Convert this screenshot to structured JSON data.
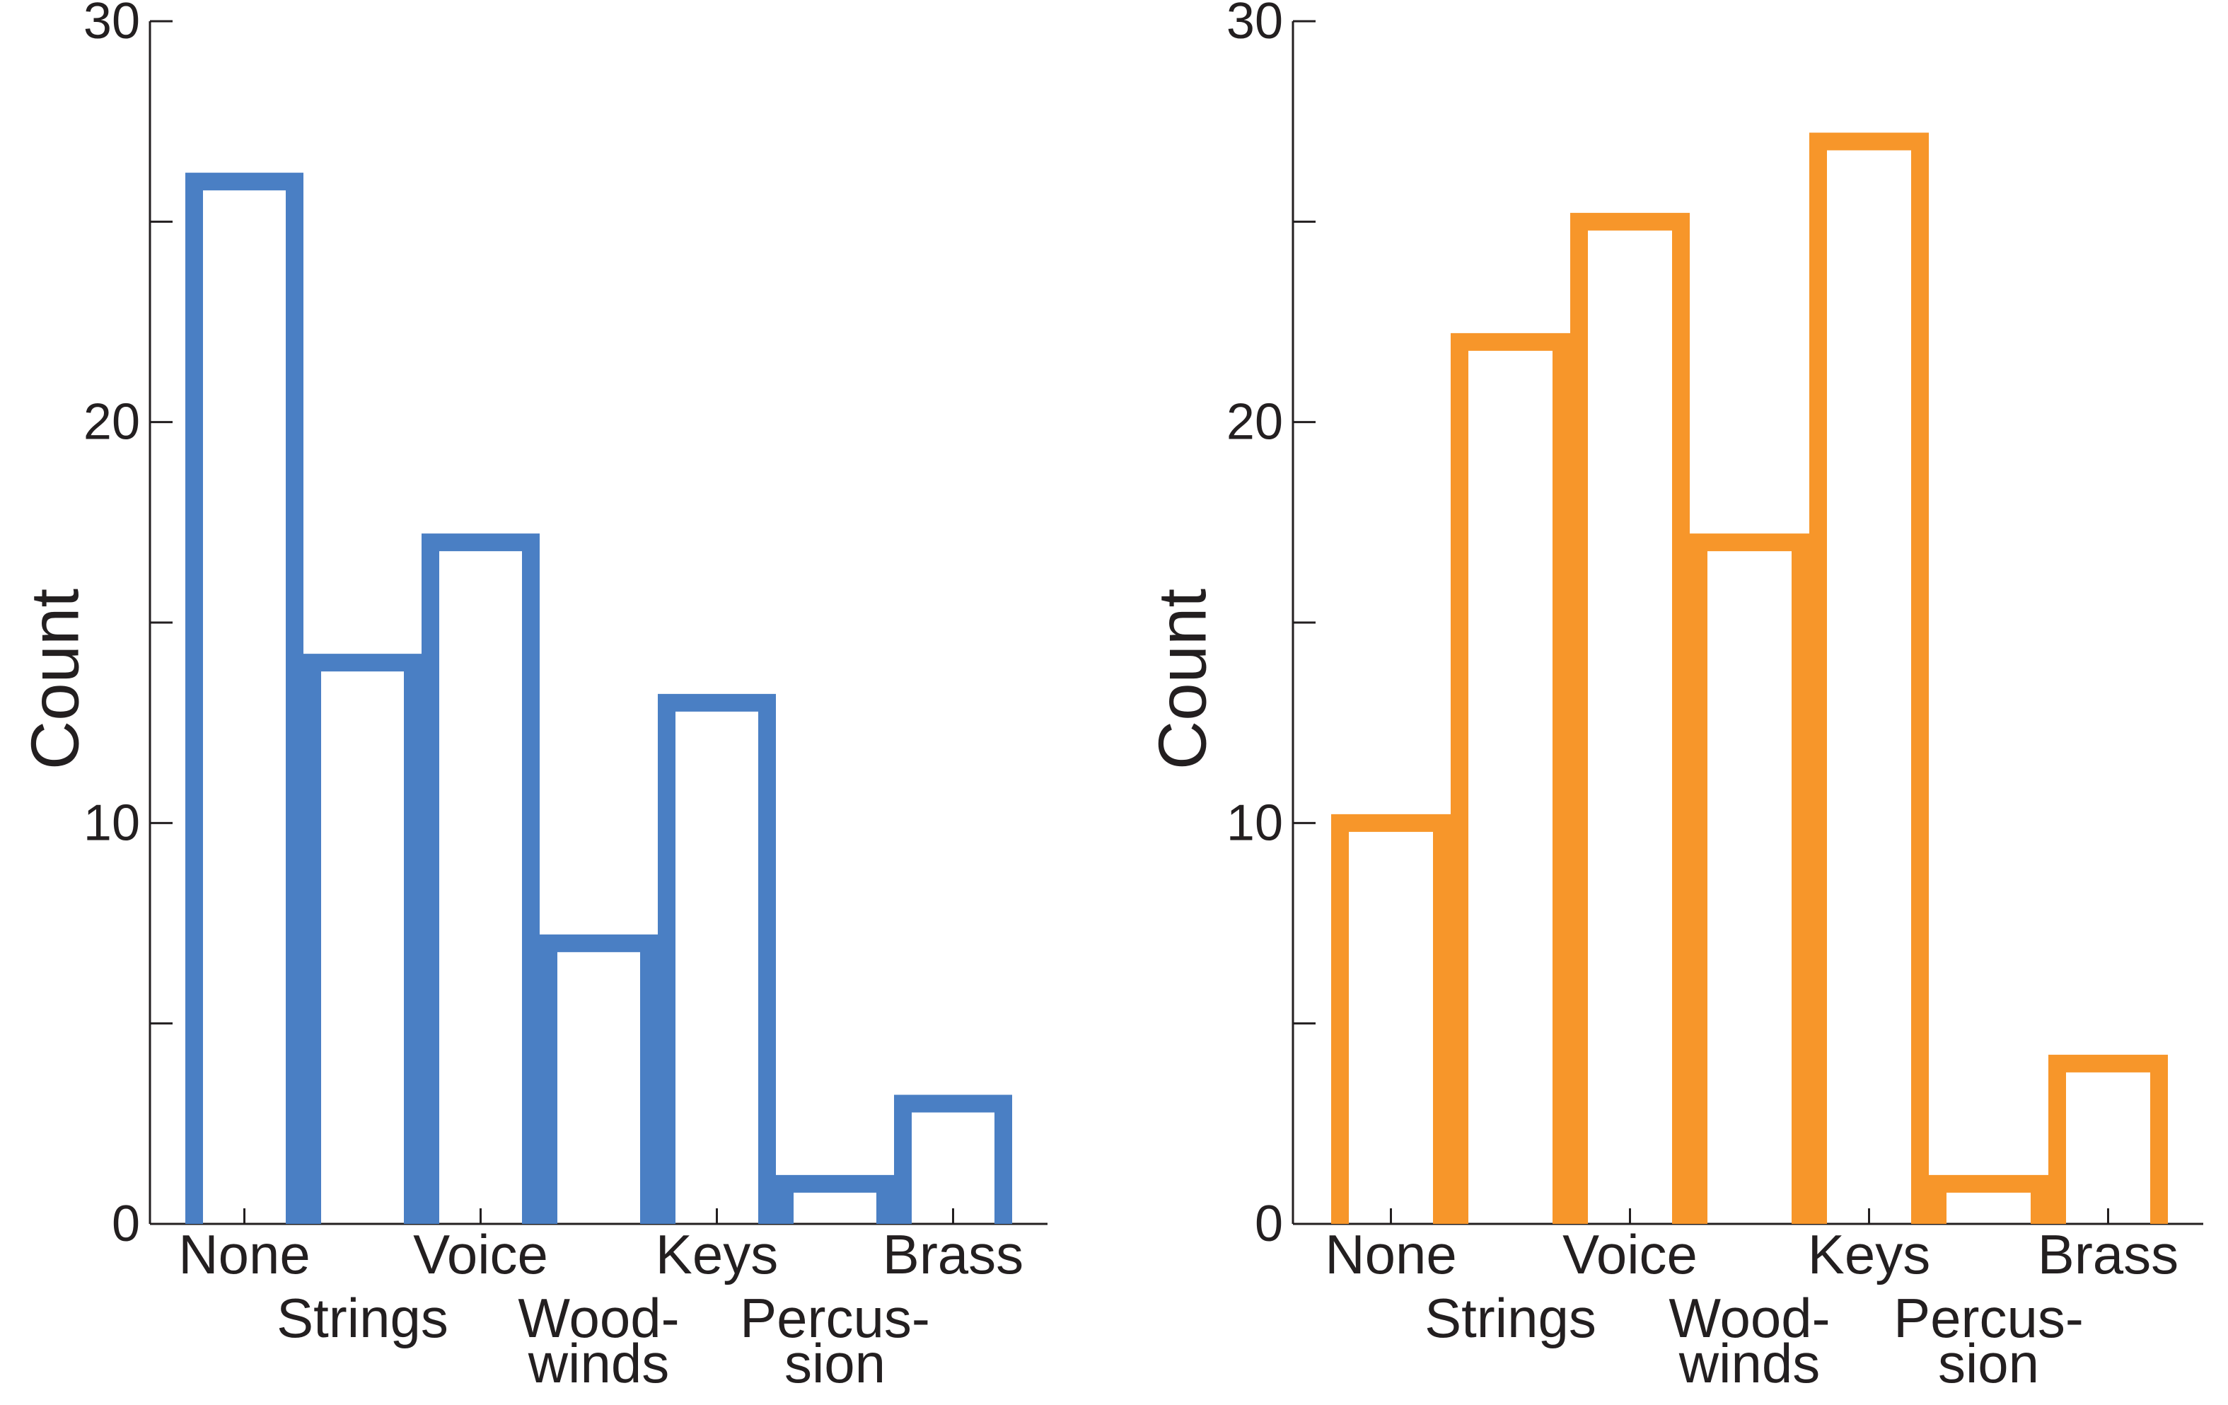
{
  "chart_data": [
    {
      "type": "bar",
      "style": "outline",
      "categories": [
        "None",
        "Strings",
        "Voice",
        "Wood-winds",
        "Keys",
        "Percus-sion",
        "Brass"
      ],
      "category_labels": [
        [
          "None"
        ],
        [
          "Strings"
        ],
        [
          "Voice"
        ],
        [
          "Wood-",
          "winds"
        ],
        [
          "Keys"
        ],
        [
          "Percus-",
          "sion"
        ],
        [
          "Brass"
        ]
      ],
      "values": [
        26,
        14,
        17,
        7,
        13,
        1,
        3
      ],
      "color": "#4a7fc4",
      "title": "",
      "xlabel": "",
      "ylabel": "Count",
      "ylim": [
        0,
        30
      ],
      "yticks": [
        0,
        10,
        20,
        30
      ],
      "yminor": [
        5,
        15,
        25
      ],
      "grid": false,
      "legend": "none"
    },
    {
      "type": "bar",
      "style": "outline",
      "categories": [
        "None",
        "Strings",
        "Voice",
        "Wood-winds",
        "Keys",
        "Percus-sion",
        "Brass"
      ],
      "category_labels": [
        [
          "None"
        ],
        [
          "Strings"
        ],
        [
          "Voice"
        ],
        [
          "Wood-",
          "winds"
        ],
        [
          "Keys"
        ],
        [
          "Percus-",
          "sion"
        ],
        [
          "Brass"
        ]
      ],
      "values": [
        10,
        22,
        25,
        17,
        27,
        1,
        4
      ],
      "color": "#f7962a",
      "title": "",
      "xlabel": "",
      "ylabel": "Count",
      "ylim": [
        0,
        30
      ],
      "yticks": [
        0,
        10,
        20,
        30
      ],
      "yminor": [
        5,
        15,
        25
      ],
      "grid": false,
      "legend": "none"
    }
  ]
}
